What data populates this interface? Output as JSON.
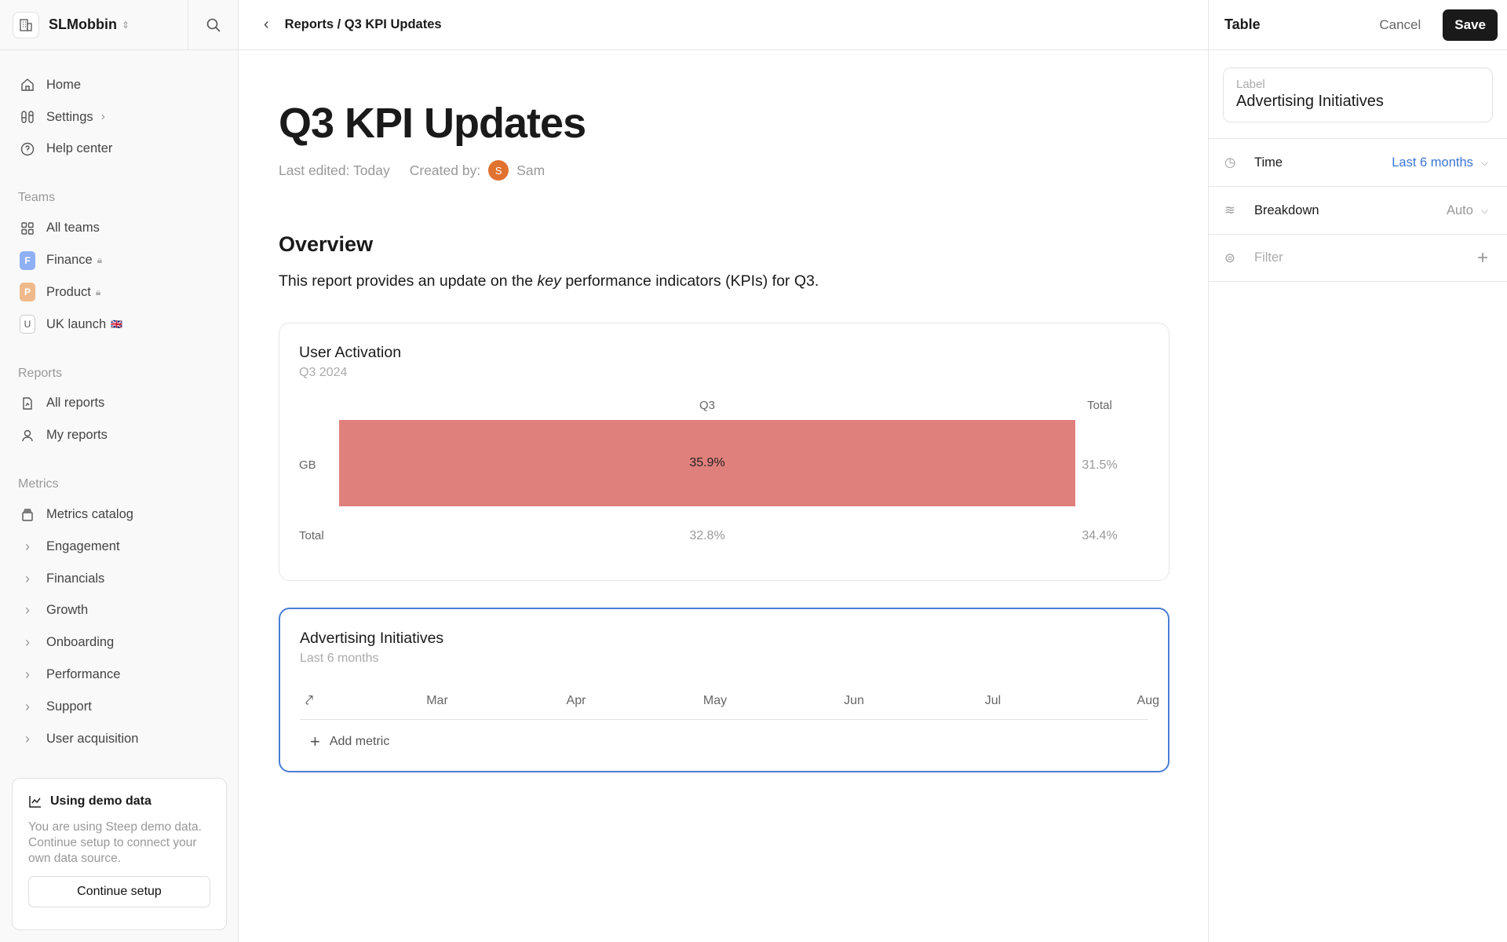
{
  "workspace": {
    "name": "SLMobbin"
  },
  "sidebar": {
    "nav": [
      {
        "label": "Home",
        "icon": "home-icon"
      },
      {
        "label": "Settings",
        "icon": "settings-icon"
      },
      {
        "label": "Help center",
        "icon": "help-icon"
      }
    ],
    "teams_title": "Teams",
    "teams": [
      {
        "label": "All teams"
      },
      {
        "label": "Finance",
        "letter": "F",
        "color": "#8fb0f2",
        "locked": true
      },
      {
        "label": "Product",
        "letter": "P",
        "color": "#efb98b",
        "locked": true
      },
      {
        "label": "UK launch",
        "letter": "U",
        "flag": "🇬🇧"
      }
    ],
    "reports_title": "Reports",
    "reports": [
      {
        "label": "All reports"
      },
      {
        "label": "My reports"
      }
    ],
    "metrics_title": "Metrics",
    "metrics": [
      {
        "label": "Metrics catalog"
      },
      {
        "label": "Engagement"
      },
      {
        "label": "Financials"
      },
      {
        "label": "Growth"
      },
      {
        "label": "Onboarding"
      },
      {
        "label": "Performance"
      },
      {
        "label": "Support"
      },
      {
        "label": "User acquisition"
      }
    ],
    "demo": {
      "title": "Using demo data",
      "text": "You are using Steep demo data. Continue setup to connect your own data source.",
      "button": "Continue setup"
    }
  },
  "header": {
    "breadcrumb": "Reports / Q3 KPI Updates"
  },
  "report": {
    "title": "Q3 KPI Updates",
    "last_edited": "Last edited: Today",
    "created_by": "Created by:",
    "author_initial": "S",
    "author": "Sam",
    "section": "Overview",
    "desc_pre": "This report provides an update on the ",
    "desc_em": "key",
    "desc_post": " performance indicators (KPIs) for Q3."
  },
  "chart_data": {
    "type": "table",
    "title": "User Activation",
    "subtitle": "Q3 2024",
    "columns": [
      "Q3",
      "Total"
    ],
    "rows": [
      {
        "label": "GB",
        "values": [
          "35.9%",
          "31.5%"
        ]
      },
      {
        "label": "Total",
        "values": [
          "32.8%",
          "34.4%"
        ]
      }
    ],
    "highlight_color": "#e0807c"
  },
  "ad_card": {
    "title": "Advertising Initiatives",
    "subtitle": "Last 6 months",
    "months": [
      "Mar",
      "Apr",
      "May",
      "Jun",
      "Jul",
      "Aug"
    ],
    "add_metric": "Add metric",
    "accent": "#4a7fd4"
  },
  "panel": {
    "title": "Table",
    "cancel": "Cancel",
    "save": "Save",
    "label_key": "Label",
    "label_value": "Advertising Initiatives",
    "time_label": "Time",
    "time_value": "Last 6 months",
    "breakdown_label": "Breakdown",
    "breakdown_value": "Auto",
    "filter_label": "Filter"
  }
}
